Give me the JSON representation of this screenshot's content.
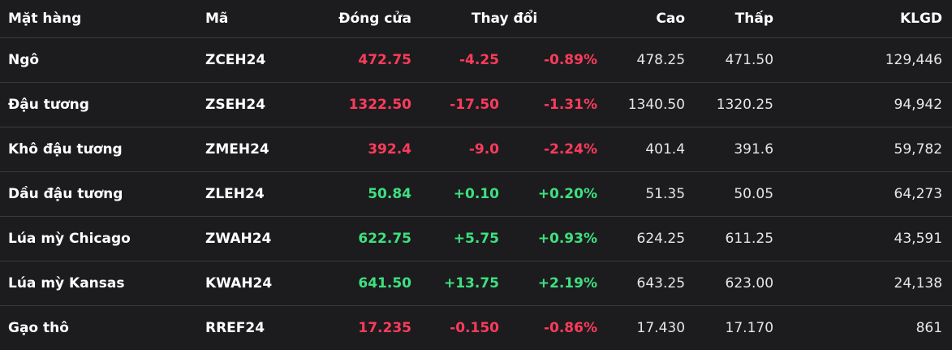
{
  "colors": {
    "background": "#1c1c1e",
    "divider": "#3a3a3c",
    "negative": "#ff3b5c",
    "positive": "#3ee07f",
    "text": "#ffffff"
  },
  "headers": {
    "name": "Mặt hàng",
    "code": "Mã",
    "close": "Đóng cửa",
    "change": "Thay đổi",
    "high": "Cao",
    "low": "Thấp",
    "volume": "KLGD"
  },
  "rows": [
    {
      "name": "Ngô",
      "code": "ZCEH24",
      "close": "472.75",
      "change": "-4.25",
      "pct": "-0.89%",
      "high": "478.25",
      "low": "471.50",
      "volume": "129,446",
      "direction": "neg"
    },
    {
      "name": "Đậu tương",
      "code": "ZSEH24",
      "close": "1322.50",
      "change": "-17.50",
      "pct": "-1.31%",
      "high": "1340.50",
      "low": "1320.25",
      "volume": "94,942",
      "direction": "neg"
    },
    {
      "name": "Khô đậu tương",
      "code": "ZMEH24",
      "close": "392.4",
      "change": "-9.0",
      "pct": "-2.24%",
      "high": "401.4",
      "low": "391.6",
      "volume": "59,782",
      "direction": "neg"
    },
    {
      "name": "Dầu đậu tương",
      "code": "ZLEH24",
      "close": "50.84",
      "change": "+0.10",
      "pct": "+0.20%",
      "high": "51.35",
      "low": "50.05",
      "volume": "64,273",
      "direction": "pos"
    },
    {
      "name": "Lúa mỳ Chicago",
      "code": "ZWAH24",
      "close": "622.75",
      "change": "+5.75",
      "pct": "+0.93%",
      "high": "624.25",
      "low": "611.25",
      "volume": "43,591",
      "direction": "pos"
    },
    {
      "name": "Lúa mỳ Kansas",
      "code": "KWAH24",
      "close": "641.50",
      "change": "+13.75",
      "pct": "+2.19%",
      "high": "643.25",
      "low": "623.00",
      "volume": "24,138",
      "direction": "pos"
    },
    {
      "name": "Gạo thô",
      "code": "RREF24",
      "close": "17.235",
      "change": "-0.150",
      "pct": "-0.86%",
      "high": "17.430",
      "low": "17.170",
      "volume": "861",
      "direction": "neg"
    }
  ]
}
